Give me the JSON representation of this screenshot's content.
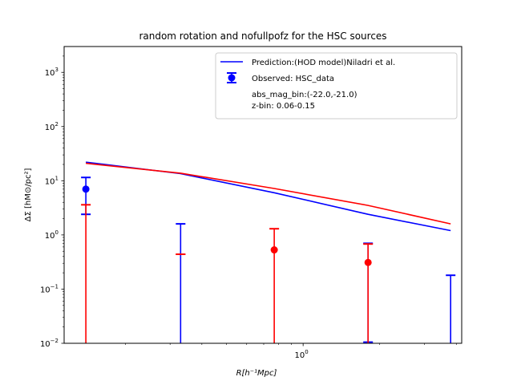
{
  "chart_data": {
    "type": "line",
    "title": "random rotation and nofullpofz for the HSC sources",
    "xlabel": "R[h⁻¹Mpc]",
    "ylabel": "ΔΣ [hM⊙/pc²]",
    "xscale": "log",
    "yscale": "log",
    "xlim": [
      0.115,
      4.2
    ],
    "ylim": [
      0.01,
      3000
    ],
    "grid": false,
    "legend_position": "top-right",
    "x_tick_labels": [
      {
        "value": 1,
        "text": "10⁰"
      }
    ],
    "y_tick_labels": [
      {
        "value": 0.01,
        "base": "10",
        "exp": "−2"
      },
      {
        "value": 0.1,
        "base": "10",
        "exp": "−1"
      },
      {
        "value": 1,
        "base": "10",
        "exp": "0"
      },
      {
        "value": 10,
        "base": "10",
        "exp": "1"
      },
      {
        "value": 100,
        "base": "10",
        "exp": "2"
      },
      {
        "value": 1000,
        "base": "10",
        "exp": "3"
      }
    ],
    "series": [
      {
        "name": "Prediction:(HOD model)Niladri et al.",
        "kind": "line",
        "color": "#0000ff",
        "x": [
          0.14,
          0.33,
          0.77,
          1.8,
          3.8
        ],
        "y": [
          22.0,
          13.5,
          6.0,
          2.4,
          1.2
        ]
      },
      {
        "kind": "line",
        "color": "#ff0000",
        "x": [
          0.14,
          0.33,
          0.77,
          1.8,
          3.8
        ],
        "y": [
          21.0,
          13.8,
          7.2,
          3.5,
          1.6
        ]
      },
      {
        "name": "Observed: HSC_data",
        "kind": "errorbar",
        "color": "#0000ff",
        "points": [
          {
            "x": 0.14,
            "y": 7.0,
            "ylow": 2.4,
            "yhigh": 11.5,
            "marker": true
          },
          {
            "x": 0.33,
            "y": null,
            "ylow": 0.01,
            "yhigh": 1.6,
            "marker": false
          },
          {
            "x": 1.8,
            "y": null,
            "ylow": 0.0105,
            "yhigh": 0.7,
            "marker": false
          },
          {
            "x": 3.8,
            "y": null,
            "ylow": 0.01,
            "yhigh": 0.18,
            "marker": false
          }
        ]
      },
      {
        "kind": "errorbar",
        "color": "#ff0000",
        "points": [
          {
            "x": 0.14,
            "y": null,
            "ylow": 0.01,
            "yhigh": 3.6,
            "marker": false
          },
          {
            "x": 0.33,
            "y": null,
            "ylow": 0.44,
            "yhigh": 0.44,
            "marker": false
          },
          {
            "x": 0.77,
            "y": 0.53,
            "ylow": 0.01,
            "yhigh": 1.3,
            "marker": true
          },
          {
            "x": 1.8,
            "y": 0.31,
            "ylow": 0.01,
            "yhigh": 0.68,
            "marker": true
          }
        ]
      }
    ],
    "legend": {
      "entries": [
        {
          "label": "Prediction:(HOD model)Niladri et al.",
          "kind": "line",
          "color": "#0000ff"
        },
        {
          "label": "Observed: HSC_data",
          "kind": "errorbar",
          "color": "#0000ff"
        },
        {
          "label": "abs_mag_bin:(-22.0,-21.0)",
          "kind": "none"
        },
        {
          "label": "z-bin: 0.06-0.15",
          "kind": "none"
        }
      ]
    }
  }
}
